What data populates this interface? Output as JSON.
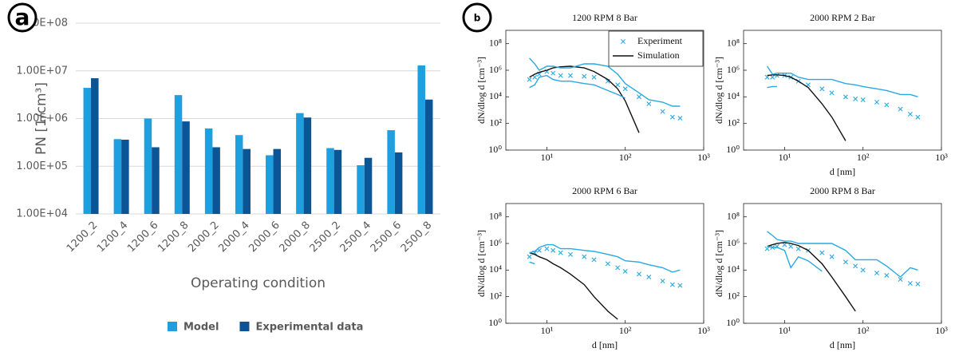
{
  "chart_data": [
    {
      "type": "bar",
      "panel_label": "a",
      "xlabel": "Operating condition",
      "ylabel": "PN [1/cm³]",
      "categories": [
        "1200_2",
        "1200_4",
        "1200_6",
        "1200_8",
        "2000_2",
        "2000_4",
        "2000_6",
        "2000_8",
        "2500_2",
        "2500_4",
        "2500_6",
        "2500_8"
      ],
      "series": [
        {
          "name": "Model",
          "color": "#1e9fe0",
          "values": [
            4400000,
            370000,
            1000000,
            3100000,
            620000,
            450000,
            170000,
            1300000,
            240000,
            105000,
            570000,
            13000000
          ]
        },
        {
          "name": "Experimental data",
          "color": "#0b5495",
          "values": [
            7000000,
            360000,
            250000,
            870000,
            250000,
            230000,
            230000,
            1050000,
            220000,
            150000,
            195000,
            2500000
          ]
        }
      ],
      "yscale": "log",
      "ylim": [
        10000,
        100000000
      ],
      "yticks": [
        {
          "value": 10000,
          "label": "1.00E+04"
        },
        {
          "value": 100000,
          "label": "1.00E+05"
        },
        {
          "value": 1000000,
          "label": "1.00E+06"
        },
        {
          "value": 10000000,
          "label": "1.00E+07"
        },
        {
          "value": 100000000,
          "label": "1.00E+08"
        }
      ],
      "grid": true,
      "legend": "bottom"
    },
    {
      "type": "line",
      "panel_label": "b",
      "title": "1200 RPM 8 Bar",
      "ylabel": "dN/dlog d [cm⁻³]",
      "x": [
        6,
        7,
        8,
        10,
        12,
        15,
        20,
        30,
        40,
        60,
        80,
        100,
        150,
        200,
        300,
        400,
        500
      ],
      "series": [
        {
          "name": "Experiment",
          "style": "markers",
          "color": "#29a9e1",
          "values": [
            200000,
            300000,
            500000,
            800000,
            600000,
            400000,
            400000,
            350000,
            300000,
            150000,
            80000,
            40000,
            10000,
            3000,
            800,
            300,
            250
          ]
        },
        {
          "name": "Simulation",
          "style": "line",
          "color": "#111111",
          "values": [
            300000,
            500000,
            700000,
            1000000,
            1500000,
            1800000,
            2000000,
            1500000,
            800000,
            200000,
            40000,
            5000,
            20,
            null,
            null,
            null,
            null
          ]
        },
        {
          "style": "line",
          "color": "#29a9e1",
          "values": [
            8000000,
            3000000,
            1000000,
            2000000,
            2000000,
            1500000,
            1500000,
            3000000,
            3000000,
            2000000,
            500000,
            100000,
            20000,
            6000,
            4000,
            2000,
            2000
          ]
        },
        {
          "style": "line",
          "color": "#29a9e1",
          "values": [
            50000,
            80000,
            300000,
            400000,
            200000,
            150000,
            150000,
            100000,
            80000,
            30000,
            15000,
            8000,
            null,
            null,
            null,
            null,
            null
          ]
        }
      ],
      "xscale": "log",
      "yscale": "log",
      "xlim": [
        3,
        1000
      ],
      "ylim": [
        1,
        1000000000
      ],
      "xticks": [
        {
          "value": 10,
          "label": "10¹"
        },
        {
          "value": 100,
          "label": "10²"
        },
        {
          "value": 1000,
          "label": "10³"
        }
      ],
      "yticks": [
        {
          "value": 1,
          "label": "10⁰"
        },
        {
          "value": 100,
          "label": "10²"
        },
        {
          "value": 10000,
          "label": "10⁴"
        },
        {
          "value": 1000000,
          "label": "10⁶"
        },
        {
          "value": 100000000,
          "label": "10⁸"
        }
      ],
      "legend": "upper right"
    },
    {
      "type": "line",
      "title": "2000 RPM 2 Bar",
      "xlabel": "d [nm]",
      "ylabel": "dN/dlog d [cm⁻³]",
      "x": [
        6,
        7,
        8,
        10,
        12,
        15,
        20,
        30,
        40,
        60,
        80,
        100,
        150,
        200,
        300,
        400,
        500
      ],
      "series": [
        {
          "style": "markers",
          "color": "#29a9e1",
          "values": [
            300000,
            300000,
            400000,
            400000,
            300000,
            150000,
            80000,
            40000,
            20000,
            10000,
            7000,
            6000,
            4000,
            2500,
            1200,
            500,
            300
          ]
        },
        {
          "style": "line",
          "color": "#111111",
          "values": [
            400000,
            450000,
            450000,
            400000,
            300000,
            150000,
            50000,
            3000,
            300,
            5,
            null,
            null,
            null,
            null,
            null,
            null,
            null
          ]
        },
        {
          "style": "line",
          "color": "#29a9e1",
          "values": [
            2000000,
            500000,
            600000,
            600000,
            600000,
            300000,
            200000,
            200000,
            200000,
            100000,
            80000,
            60000,
            40000,
            30000,
            15000,
            15000,
            10000
          ]
        },
        {
          "style": "line",
          "color": "#29a9e1",
          "values": [
            50000,
            60000,
            60000,
            null,
            null,
            null,
            null,
            null,
            null,
            null,
            null,
            null,
            null,
            null,
            null,
            null,
            null
          ]
        }
      ],
      "xscale": "log",
      "yscale": "log",
      "xlim": [
        3,
        1000
      ],
      "ylim": [
        1,
        1000000000
      ],
      "xticks": [
        {
          "value": 10,
          "label": "10¹"
        },
        {
          "value": 100,
          "label": "10²"
        },
        {
          "value": 1000,
          "label": "10³"
        }
      ],
      "yticks": [
        {
          "value": 1,
          "label": "10⁰"
        },
        {
          "value": 100,
          "label": "10²"
        },
        {
          "value": 10000,
          "label": "10⁴"
        },
        {
          "value": 1000000,
          "label": "10⁶"
        },
        {
          "value": 100000000,
          "label": "10⁸"
        }
      ]
    },
    {
      "type": "line",
      "title": "2000 RPM 6 Bar",
      "xlabel": "d [nm]",
      "ylabel": "dN/dlog d [cm⁻³]",
      "x": [
        6,
        7,
        8,
        10,
        12,
        15,
        20,
        30,
        40,
        60,
        80,
        100,
        150,
        200,
        300,
        400,
        500
      ],
      "series": [
        {
          "style": "markers",
          "color": "#29a9e1",
          "values": [
            100000,
            200000,
            300000,
            400000,
            300000,
            200000,
            150000,
            100000,
            60000,
            30000,
            15000,
            8000,
            5000,
            3000,
            1500,
            800,
            700
          ]
        },
        {
          "style": "line",
          "color": "#111111",
          "values": [
            200000,
            150000,
            100000,
            60000,
            30000,
            15000,
            5000,
            800,
            100,
            8,
            2,
            null,
            null,
            null,
            null,
            null,
            null
          ]
        },
        {
          "style": "line",
          "color": "#29a9e1",
          "values": [
            200000,
            250000,
            500000,
            800000,
            800000,
            400000,
            400000,
            300000,
            250000,
            150000,
            100000,
            50000,
            40000,
            25000,
            15000,
            7000,
            10000
          ]
        },
        {
          "style": "line",
          "color": "#29a9e1",
          "values": [
            40000,
            30000,
            null,
            null,
            null,
            null,
            null,
            null,
            null,
            null,
            null,
            null,
            null,
            null,
            null,
            null,
            null
          ]
        }
      ],
      "xscale": "log",
      "yscale": "log",
      "xlim": [
        3,
        1000
      ],
      "ylim": [
        1,
        1000000000
      ],
      "xticks": [
        {
          "value": 10,
          "label": "10¹"
        },
        {
          "value": 100,
          "label": "10²"
        },
        {
          "value": 1000,
          "label": "10³"
        }
      ],
      "yticks": [
        {
          "value": 1,
          "label": "10⁰"
        },
        {
          "value": 100,
          "label": "10²"
        },
        {
          "value": 10000,
          "label": "10⁴"
        },
        {
          "value": 1000000,
          "label": "10⁶"
        },
        {
          "value": 100000000,
          "label": "10⁸"
        }
      ]
    },
    {
      "type": "line",
      "title": "2000 RPM 8 Bar",
      "xlabel": "d [nm]",
      "ylabel": "dN/dlog d [cm⁻³]",
      "x": [
        6,
        7,
        8,
        10,
        12,
        15,
        20,
        30,
        40,
        60,
        80,
        100,
        150,
        200,
        300,
        400,
        500
      ],
      "series": [
        {
          "style": "markers",
          "color": "#29a9e1",
          "values": [
            400000,
            500000,
            600000,
            800000,
            600000,
            400000,
            300000,
            200000,
            100000,
            40000,
            20000,
            10000,
            6000,
            4000,
            2000,
            1000,
            900
          ]
        },
        {
          "style": "line",
          "color": "#111111",
          "values": [
            600000,
            800000,
            1000000,
            1200000,
            1000000,
            700000,
            300000,
            30000,
            3000,
            100,
            8,
            null,
            null,
            null,
            null,
            null,
            null
          ]
        },
        {
          "style": "line",
          "color": "#29a9e1",
          "values": [
            8000000,
            4000000,
            2000000,
            1500000,
            1500000,
            1000000,
            1000000,
            1000000,
            1000000,
            300000,
            60000,
            60000,
            60000,
            20000,
            3000,
            15000,
            10000
          ]
        },
        {
          "style": "line",
          "color": "#29a9e1",
          "values": [
            600000,
            500000,
            500000,
            300000,
            15000,
            100000,
            50000,
            8000,
            null,
            null,
            null,
            null,
            null,
            null,
            null,
            null,
            null
          ]
        }
      ],
      "xscale": "log",
      "yscale": "log",
      "xlim": [
        3,
        1000
      ],
      "ylim": [
        1,
        1000000000
      ],
      "xticks": [
        {
          "value": 10,
          "label": "10¹"
        },
        {
          "value": 100,
          "label": "10²"
        },
        {
          "value": 1000,
          "label": "10³"
        }
      ],
      "yticks": [
        {
          "value": 1,
          "label": "10⁰"
        },
        {
          "value": 100,
          "label": "10²"
        },
        {
          "value": 10000,
          "label": "10⁴"
        },
        {
          "value": 1000000,
          "label": "10⁶"
        },
        {
          "value": 100000000,
          "label": "10⁸"
        }
      ]
    }
  ]
}
